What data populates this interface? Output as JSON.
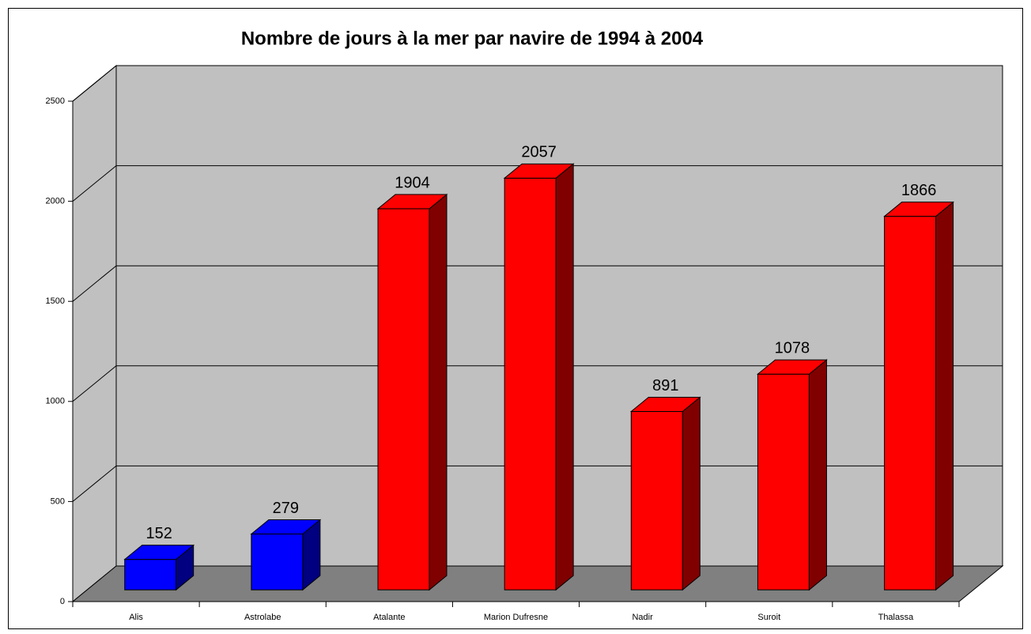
{
  "chart_data": {
    "type": "bar3d",
    "title": "Nombre de jours à la mer par navire de 1994 à 2004",
    "categories": [
      "Alis",
      "Astrolabe",
      "Atalante",
      "Marion Dufresne",
      "Nadir",
      "Suroit",
      "Thalassa"
    ],
    "values": [
      152,
      279,
      1904,
      2057,
      891,
      1078,
      1866
    ],
    "colors": [
      "#0000ff",
      "#0000ff",
      "#ff0000",
      "#ff0000",
      "#ff0000",
      "#ff0000",
      "#ff0000"
    ],
    "ylim": [
      0,
      2500
    ],
    "yticks": [
      0,
      500,
      1000,
      1500,
      2000,
      2500
    ],
    "grid": true
  }
}
